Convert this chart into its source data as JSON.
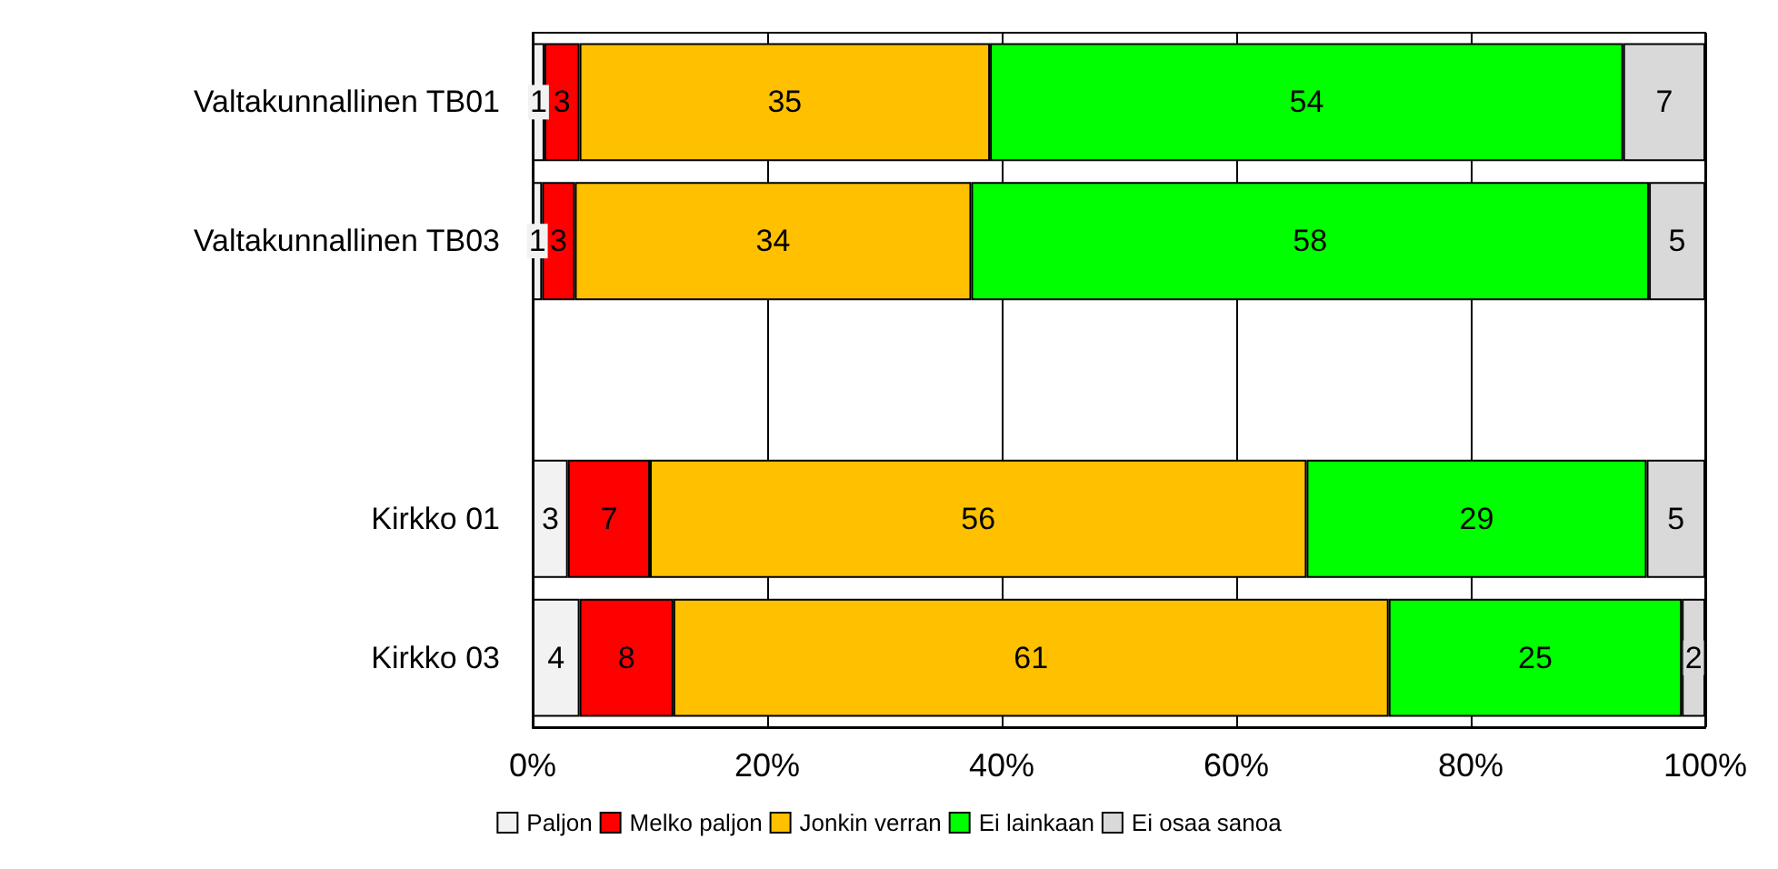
{
  "chart_data": {
    "type": "bar",
    "orientation": "horizontal",
    "stacked": true,
    "categories": [
      "Valtakunnallinen TB01",
      "Valtakunnallinen TB03",
      null,
      "Kirkko 01",
      "Kirkko 03"
    ],
    "series": [
      {
        "name": "Paljon",
        "color": "#f2f2f2",
        "values": [
          1,
          0.8,
          null,
          3,
          4
        ],
        "value_labels": [
          "1",
          "1",
          null,
          "3",
          "4"
        ]
      },
      {
        "name": "Melko paljon",
        "color": "#ff0000",
        "values": [
          3,
          2.8,
          null,
          7,
          8
        ],
        "value_labels": [
          "3",
          "3",
          null,
          "7",
          "8"
        ]
      },
      {
        "name": "Jonkin verran",
        "color": "#ffc000",
        "values": [
          35,
          33.8,
          null,
          56,
          61
        ],
        "value_labels": [
          "35",
          "34",
          null,
          "56",
          "61"
        ]
      },
      {
        "name": "Ei lainkaan",
        "color": "#00ff00",
        "values": [
          54,
          57.8,
          null,
          29,
          25
        ],
        "value_labels": [
          "54",
          "58",
          null,
          "29",
          "25"
        ]
      },
      {
        "name": "Ei osaa sanoa",
        "color": "#d9d9d9",
        "values": [
          7,
          4.8,
          null,
          5,
          2
        ],
        "value_labels": [
          "7",
          "5",
          null,
          "5",
          "2"
        ]
      }
    ],
    "xlim": [
      0,
      100
    ],
    "xticks": [
      {
        "value": 0,
        "label": "0%"
      },
      {
        "value": 20,
        "label": "20%"
      },
      {
        "value": 40,
        "label": "40%"
      },
      {
        "value": 60,
        "label": "60%"
      },
      {
        "value": 80,
        "label": "80%"
      },
      {
        "value": 100,
        "label": "100%"
      }
    ],
    "grid": "x",
    "legend": "bottom"
  }
}
